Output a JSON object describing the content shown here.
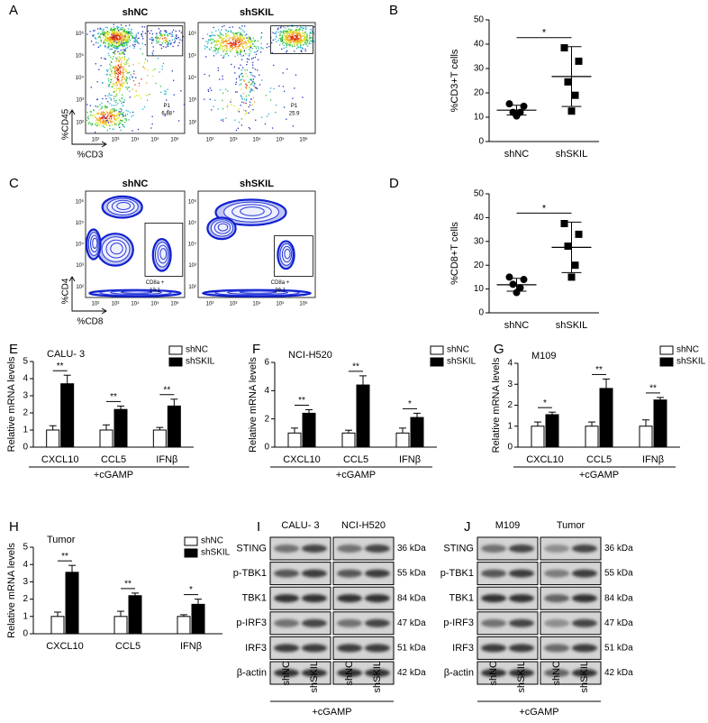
{
  "flow_panels": [
    {
      "panel": "A",
      "y_label": "%CD45",
      "x_label": "%CD3",
      "x_ticks": [
        "10²",
        "10³",
        "10⁴",
        "10⁵",
        "10⁶"
      ],
      "y_ticks": [
        "10⁶",
        "10⁵",
        "10⁴",
        "10³",
        "10²"
      ],
      "plots": [
        {
          "title": "shNC",
          "gate_name": "P1",
          "gate_value": "6.88"
        },
        {
          "title": "shSKIL",
          "gate_name": "P1",
          "gate_value": "25.9"
        }
      ]
    },
    {
      "panel": "C",
      "y_label": "%CD4",
      "x_label": "%CD8",
      "x_ticks": [
        "10²",
        "10³",
        "10⁴",
        "10⁵",
        "10⁶"
      ],
      "y_ticks": [
        "10⁶",
        "10⁵",
        "10⁴",
        "10³",
        "10²"
      ],
      "plots": [
        {
          "title": "shNC",
          "gate_name": "CD8a +",
          "gate_value": "13.1"
        },
        {
          "title": "shSKIL",
          "gate_name": "CD8a +",
          "gate_value": "28.1"
        }
      ]
    }
  ],
  "chart_data": [
    {
      "panel": "B",
      "type": "dot",
      "y_label": "%CD3+T cells",
      "categories": [
        "shNC",
        "shSKIL"
      ],
      "points": [
        [
          15.5,
          14.5,
          12,
          12,
          10.5
        ],
        [
          38.5,
          33,
          24.5,
          19,
          12.5
        ]
      ],
      "means": [
        12.9,
        26.7
      ],
      "sd": [
        2.0,
        12.3
      ],
      "markers": [
        "circle",
        "square"
      ],
      "color": "#000000",
      "annotation": "*",
      "ylim": [
        0,
        50
      ],
      "yticks": [
        0,
        10,
        20,
        30,
        40,
        50
      ]
    },
    {
      "panel": "D",
      "type": "dot",
      "y_label": "%CD8+T cells",
      "categories": [
        "shNC",
        "shSKIL"
      ],
      "points": [
        [
          15,
          14,
          12,
          10.5,
          8.5
        ],
        [
          37.5,
          33,
          28,
          20,
          15
        ]
      ],
      "means": [
        11.8,
        27.5
      ],
      "sd": [
        2.7,
        10.6
      ],
      "markers": [
        "circle",
        "square"
      ],
      "color": "#000000",
      "annotation": "*",
      "ylim": [
        0,
        50
      ],
      "yticks": [
        0,
        10,
        20,
        30,
        40,
        50
      ]
    },
    {
      "panel": "E",
      "type": "bar",
      "title": "CALU- 3",
      "y_label": "Relative mRNA levels",
      "x_label": "+cGAMP",
      "categories": [
        "CXCL10",
        "CCL5",
        "IFNβ"
      ],
      "legend": "upper right",
      "series": [
        {
          "name": "shNC",
          "color": "#ffffff",
          "values": [
            1.0,
            1.0,
            1.0
          ],
          "errors": [
            0.25,
            0.3,
            0.15
          ]
        },
        {
          "name": "shSKIL",
          "color": "#000000",
          "values": [
            3.7,
            2.2,
            2.4
          ],
          "errors": [
            0.5,
            0.2,
            0.4
          ]
        }
      ],
      "annotations": [
        "**",
        "**",
        "**"
      ],
      "ylim": [
        0,
        5
      ],
      "yticks": [
        0,
        1,
        2,
        3,
        4,
        5
      ]
    },
    {
      "panel": "F",
      "type": "bar",
      "title": "NCI-H520",
      "y_label": "Relative mRNA levels",
      "x_label": "+cGAMP",
      "categories": [
        "CXCL10",
        "CCL5",
        "IFNβ"
      ],
      "legend": "upper right",
      "series": [
        {
          "name": "shNC",
          "color": "#ffffff",
          "values": [
            1.0,
            1.0,
            1.0
          ],
          "errors": [
            0.35,
            0.2,
            0.35
          ]
        },
        {
          "name": "shSKIL",
          "color": "#000000",
          "values": [
            2.4,
            4.4,
            2.1
          ],
          "errors": [
            0.25,
            0.65,
            0.3
          ]
        }
      ],
      "annotations": [
        "**",
        "**",
        "*"
      ],
      "ylim": [
        0,
        6
      ],
      "yticks": [
        0,
        2,
        4,
        6
      ]
    },
    {
      "panel": "G",
      "type": "bar",
      "title": "M109",
      "y_label": "Relative mRNA levels",
      "x_label": "+cGAMP",
      "categories": [
        "CXCL10",
        "CCL5",
        "IFNβ"
      ],
      "legend": "upper right",
      "series": [
        {
          "name": "shNC",
          "color": "#ffffff",
          "values": [
            1.0,
            1.0,
            1.0
          ],
          "errors": [
            0.2,
            0.2,
            0.3
          ]
        },
        {
          "name": "shSKIL",
          "color": "#000000",
          "values": [
            1.55,
            2.8,
            2.25
          ],
          "errors": [
            0.12,
            0.45,
            0.12
          ]
        }
      ],
      "annotations": [
        "*",
        "**",
        "**"
      ],
      "ylim": [
        0,
        4
      ],
      "yticks": [
        0,
        1,
        2,
        3,
        4
      ]
    },
    {
      "panel": "H",
      "type": "bar",
      "title": "Tumor",
      "y_label": "Relative mRNA levels",
      "categories": [
        "CXCL10",
        "CCL5",
        "IFNβ"
      ],
      "legend": "upper right",
      "series": [
        {
          "name": "shNC",
          "color": "#ffffff",
          "values": [
            1.0,
            1.0,
            1.0
          ],
          "errors": [
            0.25,
            0.3,
            0.1
          ]
        },
        {
          "name": "shSKIL",
          "color": "#000000",
          "values": [
            3.55,
            2.2,
            1.7
          ],
          "errors": [
            0.4,
            0.15,
            0.3
          ]
        }
      ],
      "annotations": [
        "**",
        "**",
        "*"
      ],
      "ylim": [
        0,
        5
      ],
      "yticks": [
        0,
        1,
        2,
        3,
        4,
        5
      ]
    }
  ],
  "blot_panels": [
    {
      "panel": "I",
      "groups": [
        "CALU- 3",
        "NCI-H520"
      ],
      "proteins": [
        "STING",
        "p-TBK1",
        "TBK1",
        "p-IRF3",
        "IRF3",
        "β-actin"
      ],
      "sizes": [
        "36 kDa",
        "55 kDa",
        "84 kDa",
        "47 kDa",
        "51 kDa",
        "42 kDa"
      ],
      "lanes": [
        "shNC",
        "shSKIL",
        "shNC",
        "shSKIL"
      ],
      "treatment": "+cGAMP"
    },
    {
      "panel": "J",
      "groups": [
        "M109",
        "Tumor"
      ],
      "proteins": [
        "STING",
        "p-TBK1",
        "TBK1",
        "p-IRF3",
        "IRF3",
        "β-actin"
      ],
      "sizes": [
        "36 kDa",
        "55 kDa",
        "84 kDa",
        "47 kDa",
        "51 kDa",
        "42 kDa"
      ],
      "lanes": [
        "shNC",
        "shSKIL",
        "shNC",
        "shSKIL"
      ],
      "treatment": "+cGAMP"
    }
  ]
}
